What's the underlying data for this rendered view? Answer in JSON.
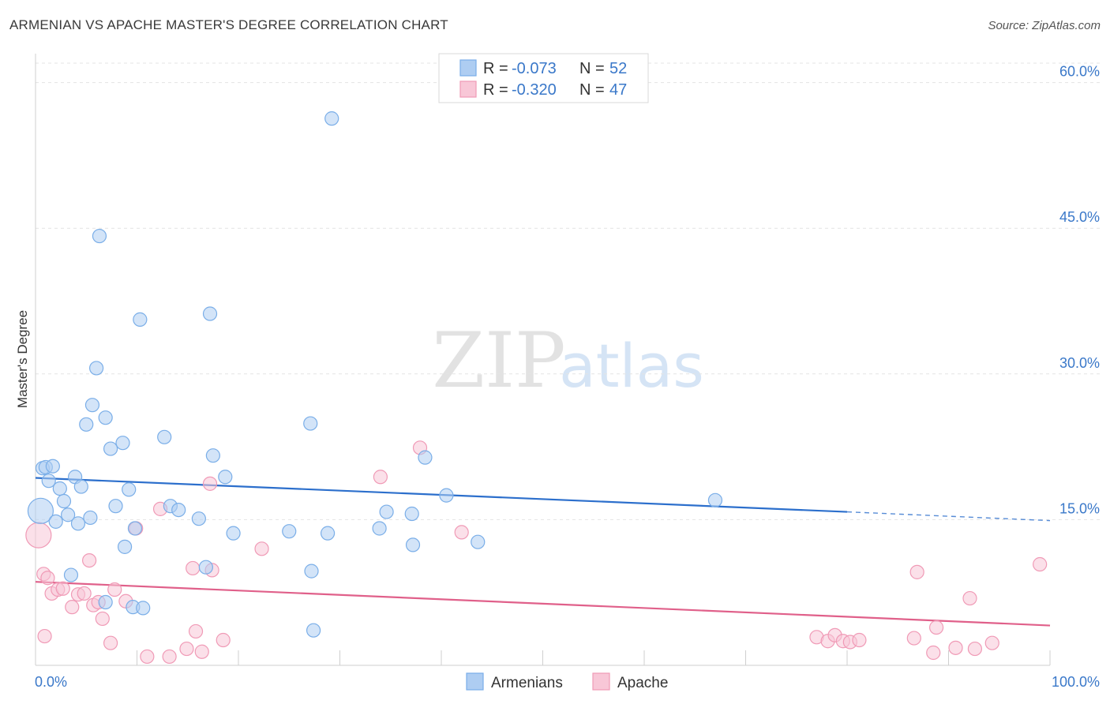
{
  "header": {
    "title": "ARMENIAN VS APACHE MASTER'S DEGREE CORRELATION CHART",
    "source": "Source: ZipAtlas.com"
  },
  "watermark": {
    "zip": "ZIP",
    "atlas": "atlas"
  },
  "chart_data": {
    "type": "scatter",
    "ylabel": "Master's Degree",
    "xlim": [
      0,
      100
    ],
    "ylim": [
      0,
      62
    ],
    "x_tick_labels": [
      "0.0%",
      "100.0%"
    ],
    "y_ticks": [
      15,
      30,
      45,
      60
    ],
    "y_tick_labels": [
      "15.0%",
      "30.0%",
      "45.0%",
      "60.0%"
    ],
    "grid": true,
    "legend": {
      "placement": "top-center",
      "entries": [
        {
          "r_label": "R = ",
          "r_value": "-0.073",
          "n_label": "N = ",
          "n_value": "52"
        },
        {
          "r_label": "R = ",
          "r_value": "-0.320",
          "n_label": "N = ",
          "n_value": "47"
        }
      ]
    },
    "series": [
      {
        "name": "Armenians",
        "color": "#7aaee8",
        "fill": "#aecdf2",
        "line_color": "#2c6fcc",
        "trend": {
          "x0": 0,
          "y0": 19.3,
          "x1": 80,
          "y1": 15.8,
          "dash_to_x": 100,
          "dash_to_y": 14.9
        },
        "points": [
          [
            0.5,
            15.9
          ],
          [
            0.7,
            20.3
          ],
          [
            1.0,
            20.4
          ],
          [
            1.3,
            19.0
          ],
          [
            1.7,
            20.5
          ],
          [
            2.0,
            14.8
          ],
          [
            2.4,
            18.2
          ],
          [
            2.8,
            16.9
          ],
          [
            3.2,
            15.5
          ],
          [
            3.5,
            9.3
          ],
          [
            3.9,
            19.4
          ],
          [
            4.2,
            14.6
          ],
          [
            4.5,
            18.4
          ],
          [
            5.4,
            15.2
          ],
          [
            5.6,
            26.8
          ],
          [
            6.3,
            44.2
          ],
          [
            6.0,
            30.6
          ],
          [
            5.0,
            24.8
          ],
          [
            6.9,
            25.5
          ],
          [
            7.4,
            22.3
          ],
          [
            7.9,
            16.4
          ],
          [
            8.6,
            22.9
          ],
          [
            8.8,
            12.2
          ],
          [
            9.2,
            18.1
          ],
          [
            9.8,
            14.1
          ],
          [
            10.3,
            35.6
          ],
          [
            9.6,
            6.0
          ],
          [
            10.6,
            5.9
          ],
          [
            12.7,
            23.5
          ],
          [
            13.3,
            16.4
          ],
          [
            14.1,
            16.0
          ],
          [
            16.1,
            15.1
          ],
          [
            17.2,
            36.2
          ],
          [
            17.5,
            21.6
          ],
          [
            18.7,
            19.4
          ],
          [
            19.5,
            13.6
          ],
          [
            16.8,
            10.1
          ],
          [
            25.0,
            13.8
          ],
          [
            27.1,
            24.9
          ],
          [
            27.4,
            3.6
          ],
          [
            27.2,
            9.7
          ],
          [
            28.8,
            13.6
          ],
          [
            29.2,
            56.3
          ],
          [
            33.9,
            14.1
          ],
          [
            34.6,
            15.8
          ],
          [
            37.1,
            15.6
          ],
          [
            37.2,
            12.4
          ],
          [
            38.4,
            21.4
          ],
          [
            40.5,
            17.5
          ],
          [
            43.6,
            12.7
          ],
          [
            67.0,
            17.0
          ],
          [
            6.9,
            6.5
          ]
        ]
      },
      {
        "name": "Apache",
        "color": "#f09ab6",
        "fill": "#f8c7d7",
        "line_color": "#e0608a",
        "trend": {
          "x0": 0,
          "y0": 8.6,
          "x1": 100,
          "y1": 4.1
        },
        "points": [
          [
            0.3,
            13.4
          ],
          [
            0.8,
            9.4
          ],
          [
            1.2,
            9.0
          ],
          [
            1.6,
            7.4
          ],
          [
            2.2,
            7.8
          ],
          [
            2.7,
            7.9
          ],
          [
            3.6,
            6.0
          ],
          [
            4.2,
            7.3
          ],
          [
            4.8,
            7.4
          ],
          [
            5.3,
            10.8
          ],
          [
            5.7,
            6.2
          ],
          [
            6.2,
            6.5
          ],
          [
            6.6,
            4.8
          ],
          [
            7.4,
            2.3
          ],
          [
            7.8,
            7.8
          ],
          [
            8.9,
            6.6
          ],
          [
            9.9,
            14.1
          ],
          [
            11.0,
            0.9
          ],
          [
            12.3,
            16.1
          ],
          [
            13.2,
            0.9
          ],
          [
            14.9,
            1.7
          ],
          [
            15.5,
            10.0
          ],
          [
            15.8,
            3.5
          ],
          [
            16.4,
            1.4
          ],
          [
            17.2,
            18.7
          ],
          [
            17.4,
            9.8
          ],
          [
            18.5,
            2.6
          ],
          [
            22.3,
            12.0
          ],
          [
            34.0,
            19.4
          ],
          [
            37.9,
            22.4
          ],
          [
            42.0,
            13.7
          ],
          [
            77.0,
            2.9
          ],
          [
            78.1,
            2.5
          ],
          [
            78.8,
            3.1
          ],
          [
            79.6,
            2.5
          ],
          [
            80.3,
            2.4
          ],
          [
            81.2,
            2.6
          ],
          [
            86.6,
            2.8
          ],
          [
            86.9,
            9.6
          ],
          [
            88.5,
            1.3
          ],
          [
            88.8,
            3.9
          ],
          [
            90.7,
            1.8
          ],
          [
            92.1,
            6.9
          ],
          [
            92.6,
            1.7
          ],
          [
            94.3,
            2.3
          ],
          [
            99.0,
            10.4
          ],
          [
            0.9,
            3.0
          ]
        ]
      }
    ]
  }
}
